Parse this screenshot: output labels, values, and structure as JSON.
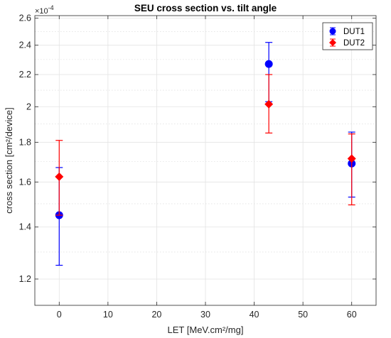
{
  "chart_data": {
    "type": "scatter",
    "title": "SEU cross section vs. tilt angle",
    "xlabel": "LET [MeV.cm²/mg]",
    "ylabel": "cross section [cm²/device]",
    "y_exponent_label": "×10",
    "y_exponent_power": "-4",
    "xlim": [
      -5,
      65
    ],
    "ylim": [
      1.11,
      2.62
    ],
    "y_scale": "log",
    "grid": true,
    "legend_position": "top-right",
    "x_ticks": [
      0,
      10,
      20,
      30,
      40,
      50,
      60
    ],
    "x_tick_labels": [
      "0",
      "10",
      "20",
      "30",
      "40",
      "50",
      "60"
    ],
    "y_ticks": [
      1.2,
      1.4,
      1.6,
      1.8,
      2.0,
      2.2,
      2.4,
      2.6
    ],
    "y_tick_labels": [
      "1.2",
      "1.4",
      "1.6",
      "1.8",
      "2",
      "2.2",
      "2.4",
      "2.6"
    ],
    "y_minor_ticks": [
      1.3,
      1.5,
      1.7,
      1.9,
      2.1,
      2.3,
      2.5
    ],
    "series": [
      {
        "name": "DUT1",
        "marker": "circle",
        "color": "#0000ff",
        "points": [
          {
            "x": 0,
            "y": 1.45,
            "err_low": 1.25,
            "err_high": 1.67
          },
          {
            "x": 43,
            "y": 2.27,
            "err_low": 2.03,
            "err_high": 2.42
          },
          {
            "x": 60,
            "y": 1.69,
            "err_low": 1.53,
            "err_high": 1.855
          }
        ]
      },
      {
        "name": "DUT2",
        "marker": "diamond",
        "color": "#ff0000",
        "points": [
          {
            "x": 0,
            "y": 1.625,
            "err_low": 1.45,
            "err_high": 1.81
          },
          {
            "x": 43,
            "y": 2.015,
            "err_low": 1.85,
            "err_high": 2.2
          },
          {
            "x": 60,
            "y": 1.715,
            "err_low": 1.495,
            "err_high": 1.845
          }
        ]
      }
    ]
  }
}
